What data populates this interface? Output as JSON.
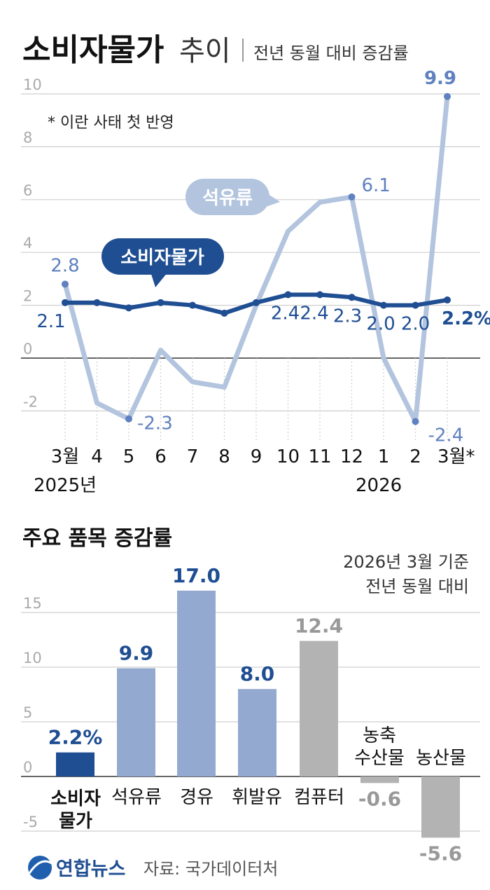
{
  "header": {
    "title_bold": "소비자물가",
    "title_light": "추이",
    "subtitle": "전년 동월 대비 증감률",
    "note": "* 이란 사태 첫 반영"
  },
  "colors": {
    "cpi": "#1f4e93",
    "oil": "#b3c4de",
    "oil_label": "#5f81bf",
    "bar_light": "#94a9d0",
    "bar_gray": "#b3b3b3",
    "grid": "#cfcfcf",
    "tick": "#aaaaaa"
  },
  "chart_data": [
    {
      "type": "line",
      "title": "소비자물가 추이",
      "subtitle": "전년 동월 대비 증감률",
      "x": [
        "3월",
        "4",
        "5",
        "6",
        "7",
        "8",
        "9",
        "10",
        "11",
        "12",
        "1",
        "2",
        "3월*"
      ],
      "x_year_labels": [
        "2025년",
        "2026"
      ],
      "ylim": [
        -3,
        10.5
      ],
      "yticks": [
        -2,
        0,
        2,
        4,
        6,
        8,
        10
      ],
      "grid": true,
      "series": [
        {
          "name": "석유류",
          "values": [
            2.8,
            -1.7,
            -2.3,
            0.3,
            -0.9,
            -1.1,
            2.0,
            4.8,
            5.9,
            6.1,
            0.0,
            -2.4,
            9.9
          ],
          "point_labels": [
            {
              "index": 0,
              "text": "2.8"
            },
            {
              "index": 2,
              "text": "-2.3"
            },
            {
              "index": 9,
              "text": "6.1"
            },
            {
              "index": 11,
              "text": "-2.4"
            },
            {
              "index": 12,
              "text": "9.9"
            }
          ]
        },
        {
          "name": "소비자물가",
          "values": [
            2.1,
            2.1,
            1.9,
            2.1,
            2.0,
            1.7,
            2.1,
            2.4,
            2.4,
            2.3,
            2.0,
            2.0,
            2.2
          ],
          "point_labels": [
            {
              "index": 0,
              "text": "2.1"
            },
            {
              "index": 7,
              "text": "2.4"
            },
            {
              "index": 8,
              "text": "2.4"
            },
            {
              "index": 9,
              "text": "2.3"
            },
            {
              "index": 10,
              "text": "2.0"
            },
            {
              "index": 11,
              "text": "2.0"
            },
            {
              "index": 12,
              "text": "2.2%"
            }
          ]
        }
      ]
    },
    {
      "type": "bar",
      "title": "주요 품목 증감률",
      "note_lines": [
        "2026년 3월 기준",
        "전년 동월 대비"
      ],
      "ylim": [
        -7,
        17
      ],
      "yticks": [
        -5,
        0,
        5,
        10,
        15
      ],
      "grid": true,
      "categories": [
        "소비자물가",
        "석유류",
        "경유",
        "휘발유",
        "컴퓨터",
        "농축수산물",
        "농산물"
      ],
      "category_labels": [
        [
          "소비자",
          "물가"
        ],
        [
          "석유류"
        ],
        [
          "경유"
        ],
        [
          "휘발유"
        ],
        [
          "컴퓨터"
        ],
        [
          "농축",
          "수산물"
        ],
        [
          "농산물"
        ]
      ],
      "values": [
        2.2,
        9.9,
        17.0,
        8.0,
        12.4,
        -0.6,
        -5.6
      ],
      "value_labels": [
        "2.2%",
        "9.9",
        "17.0",
        "8.0",
        "12.4",
        "-0.6",
        "-5.6"
      ]
    }
  ],
  "footer": {
    "logo_text": "연합뉴스",
    "source": "자료: 국가데이터처"
  }
}
